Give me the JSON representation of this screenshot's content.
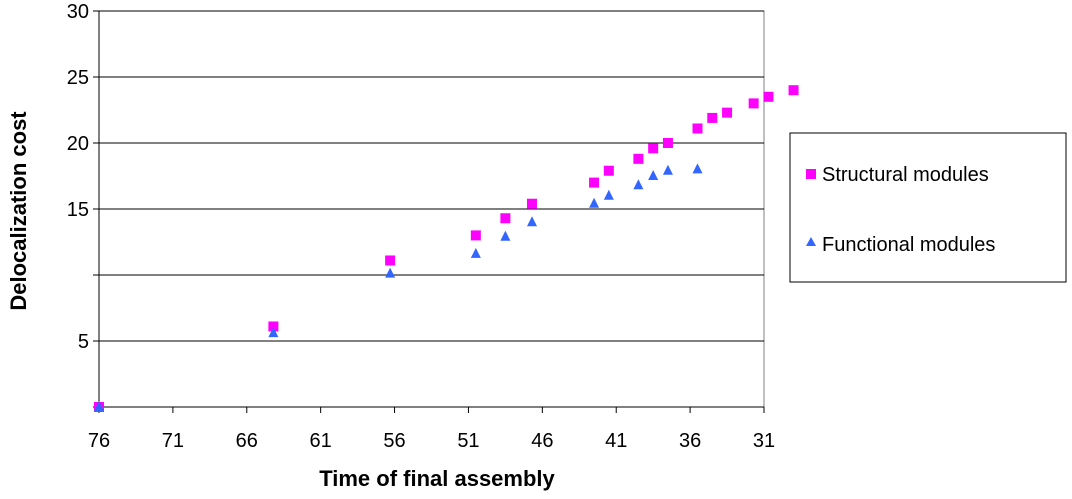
{
  "chart_data": {
    "type": "scatter",
    "title": "",
    "xlabel": "Time of final assembly",
    "ylabel": "Delocalization cost",
    "xlim": [
      76,
      31
    ],
    "x_reversed": true,
    "ylim": [
      0,
      30
    ],
    "x_ticks": [
      76,
      71,
      66,
      61,
      56,
      51,
      46,
      41,
      36,
      31
    ],
    "y_ticks": [
      0,
      5,
      10,
      15,
      20,
      25,
      30
    ],
    "y_tick_labels": [
      "",
      "5",
      "",
      "15",
      "20",
      "25",
      "30"
    ],
    "grid": "horizontal",
    "legend_position": "right",
    "series": [
      {
        "name": "Structural modules",
        "marker": "square",
        "color": "#ff00ff",
        "points": [
          {
            "x": 76,
            "y": 0
          },
          {
            "x": 64.2,
            "y": 6.1
          },
          {
            "x": 56.3,
            "y": 11.1
          },
          {
            "x": 50.5,
            "y": 13.0
          },
          {
            "x": 48.5,
            "y": 14.3
          },
          {
            "x": 46.7,
            "y": 15.4
          },
          {
            "x": 42.5,
            "y": 17.0
          },
          {
            "x": 41.5,
            "y": 17.9
          },
          {
            "x": 39.5,
            "y": 18.8
          },
          {
            "x": 38.5,
            "y": 19.6
          },
          {
            "x": 37.5,
            "y": 20.0
          },
          {
            "x": 35.5,
            "y": 21.1
          },
          {
            "x": 34.5,
            "y": 21.9
          },
          {
            "x": 33.5,
            "y": 22.3
          },
          {
            "x": 31.7,
            "y": 23.0
          },
          {
            "x": 30.7,
            "y": 23.5
          },
          {
            "x": 29.0,
            "y": 24.0
          }
        ]
      },
      {
        "name": "Functional modules",
        "marker": "triangle",
        "color": "#3366ff",
        "points": [
          {
            "x": 76,
            "y": 0
          },
          {
            "x": 64.2,
            "y": 5.6
          },
          {
            "x": 56.3,
            "y": 10.1
          },
          {
            "x": 50.5,
            "y": 11.6
          },
          {
            "x": 48.5,
            "y": 12.9
          },
          {
            "x": 46.7,
            "y": 14.0
          },
          {
            "x": 42.5,
            "y": 15.4
          },
          {
            "x": 41.5,
            "y": 16.0
          },
          {
            "x": 39.5,
            "y": 16.8
          },
          {
            "x": 38.5,
            "y": 17.5
          },
          {
            "x": 37.5,
            "y": 17.9
          },
          {
            "x": 35.5,
            "y": 18.0
          }
        ]
      }
    ]
  }
}
